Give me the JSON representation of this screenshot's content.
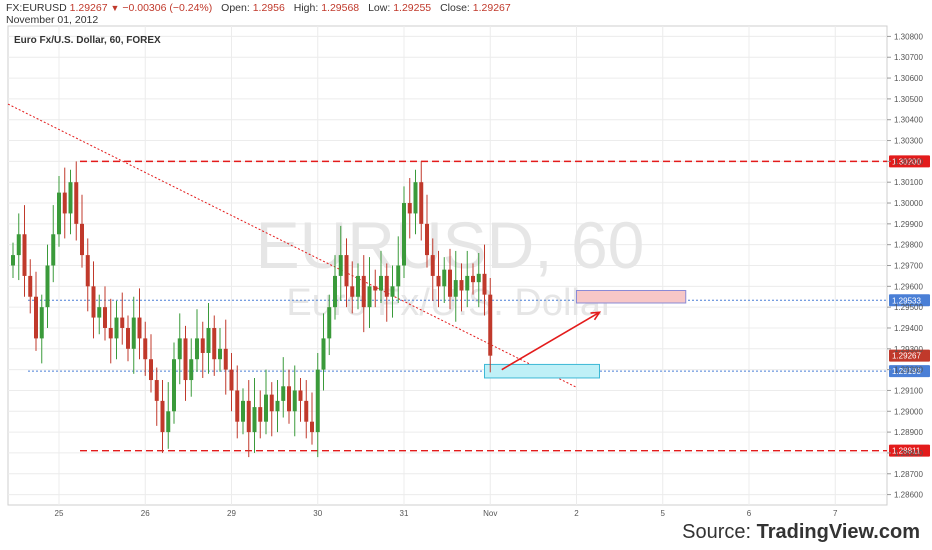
{
  "header": {
    "symbol": "FX:EURUSD",
    "last": "1.29267",
    "change": "−0.00306 (−0.24%)",
    "open_label": "Open:",
    "open": "1.2956",
    "high_label": "High:",
    "high": "1.29568",
    "low_label": "Low:",
    "low": "1.29255",
    "close_label": "Close:",
    "close": "1.29267",
    "date": "November 01, 2012"
  },
  "chart_title": "Euro Fx/U.S. Dollar, 60, FOREX",
  "watermark": {
    "main": "EURUSD, 60",
    "sub": "Euro Fx/U.S. Dollar"
  },
  "source": {
    "prefix": "Source: ",
    "brand": "TradingView.com"
  },
  "colors": {
    "up": "#3a9a3a",
    "down": "#c0392b",
    "resistance": "#e31b1b",
    "support_box": "#bff0f7",
    "target_box": "#f7c7c7",
    "blue_level": "#4a7fd6"
  },
  "chart_data": {
    "type": "candlestick",
    "ylim": [
      1.2855,
      1.3085
    ],
    "y_ticks": [
      "1.30800",
      "1.30700",
      "1.30600",
      "1.30500",
      "1.30400",
      "1.30300",
      "1.30200",
      "1.30100",
      "1.30000",
      "1.29900",
      "1.29800",
      "1.29700",
      "1.29600",
      "1.29500",
      "1.29400",
      "1.29300",
      "1.29200",
      "1.29100",
      "1.29000",
      "1.28900",
      "1.28800",
      "1.28700",
      "1.28600"
    ],
    "x_ticks": [
      {
        "label": "25",
        "slot": 8
      },
      {
        "label": "26",
        "slot": 23
      },
      {
        "label": "29",
        "slot": 38
      },
      {
        "label": "30",
        "slot": 53
      },
      {
        "label": "31",
        "slot": 68
      },
      {
        "label": "Nov",
        "slot": 83
      },
      {
        "label": "2",
        "slot": 98
      },
      {
        "label": "5",
        "slot": 113
      },
      {
        "label": "6",
        "slot": 128
      },
      {
        "label": "7",
        "slot": 143
      }
    ],
    "levels": [
      {
        "value": 1.302,
        "label": "1.30200",
        "style": "dash-red"
      },
      {
        "value": 1.29533,
        "label": "1.29533",
        "style": "dot-blue"
      },
      {
        "value": 1.29267,
        "label": "1.29267",
        "style": "last"
      },
      {
        "value": 1.29193,
        "label": "1.29193",
        "style": "dot-blue"
      },
      {
        "value": 1.28811,
        "label": "1.28811",
        "style": "dash-red"
      }
    ],
    "closes": [
      1.2975,
      1.2985,
      1.2965,
      1.2955,
      1.2935,
      1.295,
      1.297,
      1.2985,
      1.3005,
      1.2995,
      1.301,
      1.299,
      1.2975,
      1.296,
      1.2945,
      1.295,
      1.294,
      1.2935,
      1.2945,
      1.294,
      1.293,
      1.2945,
      1.2935,
      1.2925,
      1.2915,
      1.2905,
      1.289,
      1.29,
      1.2925,
      1.2935,
      1.2915,
      1.2925,
      1.2935,
      1.2928,
      1.294,
      1.2925,
      1.293,
      1.292,
      1.291,
      1.2895,
      1.2905,
      1.289,
      1.2902,
      1.2895,
      1.2908,
      1.29,
      1.2905,
      1.2912,
      1.29,
      1.291,
      1.2905,
      1.2895,
      1.289,
      1.292,
      1.2935,
      1.295,
      1.2965,
      1.2975,
      1.296,
      1.2955,
      1.2965,
      1.295,
      1.296,
      1.2958,
      1.2965,
      1.2955,
      1.296,
      1.297,
      1.3,
      1.2995,
      1.301,
      1.299,
      1.2975,
      1.2965,
      1.296,
      1.2968,
      1.2955,
      1.2963,
      1.2958,
      1.2965,
      1.2962,
      1.2966,
      1.2956,
      1.29267
    ],
    "trendline": {
      "start": {
        "slot": 0,
        "value": 1.30475
      },
      "end": {
        "slot": 98,
        "value": 1.29115
      }
    },
    "support_box": {
      "slot_start": 82,
      "slot_end": 102,
      "low": 1.2916,
      "high": 1.29225
    },
    "target_box": {
      "slot_start": 98,
      "slot_end": 117,
      "low": 1.2952,
      "high": 1.2958
    },
    "arrow": {
      "from": {
        "slot": 85,
        "value": 1.292
      },
      "to": {
        "slot": 102,
        "value": 1.29475
      }
    }
  }
}
